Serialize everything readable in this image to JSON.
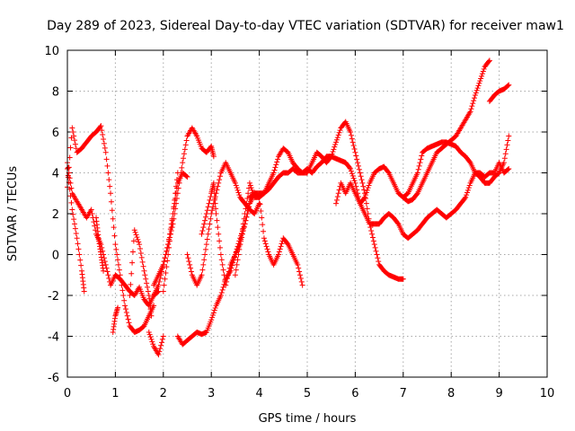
{
  "chart_data": {
    "type": "scatter",
    "title": "Day 289 of 2023, Sidereal Day-to-day VTEC variation (SDTVAR) for receiver maw1",
    "xlabel": "GPS time / hours",
    "ylabel": "SDTVAR / TECUs",
    "xlim": [
      0,
      10
    ],
    "ylim": [
      -6,
      10
    ],
    "x_ticks": [
      "0",
      "1",
      "2",
      "3",
      "4",
      "5",
      "6",
      "7",
      "8",
      "9",
      "10"
    ],
    "y_ticks": [
      "-6",
      "-4",
      "-2",
      "0",
      "2",
      "4",
      "6",
      "8",
      "10"
    ],
    "grid": true,
    "marker": "+",
    "marker_color": "#ff0000",
    "series": [
      {
        "name": "track-1",
        "x": [
          0.0,
          0.1,
          0.2,
          0.3,
          0.4,
          0.5,
          0.6,
          0.7,
          0.8,
          0.9,
          1.0,
          1.1,
          1.2,
          1.3,
          1.4,
          1.5,
          1.6,
          1.7,
          1.8,
          1.9
        ],
        "y": [
          4.5,
          3.0,
          2.6,
          2.2,
          1.8,
          2.2,
          1.0,
          0.5,
          -0.5,
          -1.5,
          -1.0,
          -1.2,
          -1.5,
          -1.8,
          -2.0,
          -1.6,
          -2.2,
          -2.5,
          -2.0,
          -1.8
        ]
      },
      {
        "name": "track-2",
        "x": [
          0.0,
          0.1,
          0.2,
          0.3,
          0.4,
          0.5,
          0.6,
          0.7,
          0.8,
          0.9,
          1.0,
          1.1,
          1.2,
          1.3,
          1.4,
          1.5,
          1.6,
          1.7,
          1.8
        ],
        "y": [
          3.3,
          6.2,
          5.0,
          5.2,
          5.5,
          5.8,
          6.0,
          6.3,
          5.0,
          3.0,
          0.5,
          -1.0,
          -2.5,
          -3.5,
          -3.8,
          -3.7,
          -3.5,
          -3.0,
          -2.5
        ]
      },
      {
        "name": "track-3",
        "x": [
          0.0,
          0.1,
          0.2,
          0.3,
          0.35
        ],
        "y": [
          4.2,
          2.2,
          0.8,
          -0.8,
          -1.8
        ]
      },
      {
        "name": "track-4",
        "x": [
          0.6,
          0.65,
          0.7,
          0.75
        ],
        "y": [
          1.8,
          0.8,
          0.0,
          -0.8
        ]
      },
      {
        "name": "track-5",
        "x": [
          0.95,
          1.0,
          1.05
        ],
        "y": [
          -3.8,
          -3.0,
          -2.6
        ]
      },
      {
        "name": "track-6",
        "x": [
          1.3,
          1.4,
          1.5,
          1.6,
          1.7,
          1.75
        ],
        "y": [
          -2.0,
          1.2,
          0.5,
          -0.8,
          -2.0,
          -3.0
        ]
      },
      {
        "name": "track-7",
        "x": [
          1.7,
          1.8,
          1.9,
          2.0
        ],
        "y": [
          -3.8,
          -4.5,
          -4.9,
          -4.0
        ]
      },
      {
        "name": "track-8",
        "x": [
          1.8,
          1.9,
          2.0,
          2.1,
          2.2,
          2.3,
          2.4,
          2.5,
          2.6,
          2.7,
          2.8,
          2.9,
          3.0,
          3.05
        ],
        "y": [
          -1.5,
          -1.0,
          -0.5,
          0.5,
          1.5,
          3.0,
          4.5,
          5.8,
          6.2,
          5.8,
          5.2,
          5.0,
          5.3,
          4.8
        ]
      },
      {
        "name": "track-9",
        "x": [
          1.8,
          1.9,
          2.0,
          2.1,
          2.2,
          2.3
        ],
        "y": [
          -2.0,
          -1.5,
          -0.5,
          0.5,
          2.0,
          4.0
        ]
      },
      {
        "name": "track-10",
        "x": [
          2.0,
          2.1,
          2.2,
          2.3,
          2.4,
          2.5
        ],
        "y": [
          -1.8,
          0.0,
          2.0,
          3.5,
          4.0,
          3.8
        ]
      },
      {
        "name": "track-11",
        "x": [
          2.3,
          2.4,
          2.5,
          2.6,
          2.7,
          2.8,
          2.9,
          3.0,
          3.1,
          3.2,
          3.3,
          3.4,
          3.5,
          3.6,
          3.7,
          3.8,
          3.9,
          4.0
        ],
        "y": [
          -4.0,
          -4.4,
          -4.2,
          -4.0,
          -3.8,
          -3.9,
          -3.8,
          -3.2,
          -2.5,
          -2.0,
          -1.2,
          -0.8,
          0.0,
          0.8,
          1.5,
          2.5,
          3.0,
          2.8
        ]
      },
      {
        "name": "track-12",
        "x": [
          2.5,
          2.6,
          2.7,
          2.8,
          2.9,
          3.0,
          3.1,
          3.2,
          3.3,
          3.4,
          3.5,
          3.6,
          3.7,
          3.8,
          3.9,
          4.0
        ],
        "y": [
          0.0,
          -1.0,
          -1.5,
          -1.0,
          0.5,
          2.0,
          3.0,
          4.0,
          4.5,
          4.0,
          3.5,
          2.8,
          2.5,
          2.2,
          2.0,
          2.5
        ]
      },
      {
        "name": "track-13",
        "x": [
          2.8,
          2.9,
          3.0,
          3.05,
          3.1,
          3.2,
          3.3,
          3.4,
          3.5,
          3.6,
          3.7,
          3.8,
          3.9,
          4.0,
          4.1,
          4.2,
          4.3,
          4.4,
          4.5,
          4.6,
          4.7,
          4.8,
          4.9
        ],
        "y": [
          1.0,
          2.0,
          3.0,
          3.5,
          2.0,
          0.0,
          -1.5,
          -0.5,
          0.0,
          0.5,
          1.5,
          2.5,
          3.0,
          2.8,
          0.8,
          0.0,
          -0.5,
          0.0,
          0.8,
          0.5,
          0.0,
          -0.5,
          -1.5
        ]
      },
      {
        "name": "track-14",
        "x": [
          3.5,
          3.6,
          3.7,
          3.8,
          3.9,
          4.0,
          4.1,
          4.2,
          4.3,
          4.4,
          4.5,
          4.6,
          4.7,
          4.8,
          4.9,
          5.0,
          5.1,
          5.2,
          5.3,
          5.4,
          5.5,
          5.6,
          5.7,
          5.8,
          5.9,
          6.0,
          6.1,
          6.2,
          6.3,
          6.4,
          6.5,
          6.6,
          6.7,
          6.8,
          6.9,
          7.0
        ],
        "y": [
          -1.0,
          0.5,
          2.0,
          3.5,
          2.8,
          2.8,
          3.0,
          3.5,
          4.0,
          4.8,
          5.2,
          5.0,
          4.5,
          4.2,
          4.0,
          4.0,
          4.5,
          5.0,
          4.8,
          4.5,
          4.8,
          5.5,
          6.2,
          6.5,
          6.0,
          5.0,
          4.0,
          3.0,
          1.5,
          0.5,
          -0.5,
          -0.8,
          -1.0,
          -1.1,
          -1.2,
          -1.2
        ]
      },
      {
        "name": "track-15",
        "x": [
          3.8,
          3.9,
          4.0,
          4.1,
          4.2,
          4.3,
          4.4,
          4.5,
          4.6,
          4.7,
          4.8,
          4.9,
          5.0,
          5.1,
          5.2,
          5.3,
          5.4,
          5.5,
          5.6,
          5.7,
          5.8,
          5.9,
          6.0,
          6.1,
          6.2,
          6.3,
          6.4,
          6.5,
          6.6,
          6.7,
          6.8,
          6.9,
          7.0,
          7.1,
          7.2,
          7.3,
          7.4,
          7.5,
          7.6,
          7.7,
          7.8,
          7.9,
          8.0,
          8.1,
          8.2,
          8.3,
          8.4,
          8.5,
          8.6,
          8.7,
          8.8,
          8.9,
          9.0,
          9.1,
          9.2
        ],
        "y": [
          2.8,
          3.0,
          3.0,
          3.0,
          3.2,
          3.5,
          3.8,
          4.0,
          4.0,
          4.2,
          4.0,
          4.0,
          4.2,
          4.0,
          4.3,
          4.5,
          4.8,
          4.8,
          4.7,
          4.6,
          4.5,
          4.2,
          3.5,
          2.5,
          2.0,
          1.5,
          1.5,
          1.5,
          1.8,
          2.0,
          1.8,
          1.5,
          1.0,
          0.8,
          1.0,
          1.2,
          1.5,
          1.8,
          2.0,
          2.2,
          2.0,
          1.8,
          2.0,
          2.2,
          2.5,
          2.8,
          3.5,
          4.0,
          4.0,
          3.8,
          4.0,
          4.0,
          4.5,
          4.0,
          4.2
        ]
      },
      {
        "name": "track-16",
        "x": [
          5.6,
          5.7,
          5.8,
          5.9,
          6.0,
          6.1,
          6.2,
          6.3,
          6.4,
          6.5,
          6.6,
          6.7,
          6.8,
          6.9,
          7.0,
          7.1,
          7.2,
          7.3,
          7.4,
          7.5,
          7.6,
          7.7,
          7.8,
          7.9,
          8.0,
          8.1,
          8.2,
          8.3,
          8.4,
          8.5,
          8.6,
          8.7,
          8.8,
          8.9,
          9.0,
          9.1,
          9.2
        ],
        "y": [
          2.5,
          3.5,
          3.0,
          3.5,
          3.0,
          2.5,
          2.8,
          3.5,
          4.0,
          4.2,
          4.3,
          4.0,
          3.5,
          3.0,
          2.8,
          3.0,
          3.5,
          4.0,
          5.0,
          5.2,
          5.3,
          5.4,
          5.5,
          5.5,
          5.4,
          5.3,
          5.0,
          4.8,
          4.5,
          4.0,
          3.8,
          3.5,
          3.5,
          3.8,
          4.0,
          4.5,
          5.8
        ]
      },
      {
        "name": "track-17",
        "x": [
          7.0,
          7.1,
          7.2,
          7.3,
          7.4,
          7.5,
          7.6,
          7.7,
          7.8,
          7.9,
          8.0,
          8.1,
          8.2,
          8.3,
          8.4,
          8.5,
          8.6,
          8.7,
          8.8
        ],
        "y": [
          2.8,
          2.6,
          2.7,
          3.0,
          3.5,
          4.0,
          4.5,
          5.0,
          5.2,
          5.4,
          5.6,
          5.8,
          6.2,
          6.6,
          7.0,
          7.8,
          8.5,
          9.2,
          9.5
        ]
      },
      {
        "name": "track-18",
        "x": [
          8.8,
          8.9,
          9.0,
          9.1,
          9.2
        ],
        "y": [
          7.5,
          7.8,
          8.0,
          8.1,
          8.3
        ]
      }
    ]
  }
}
